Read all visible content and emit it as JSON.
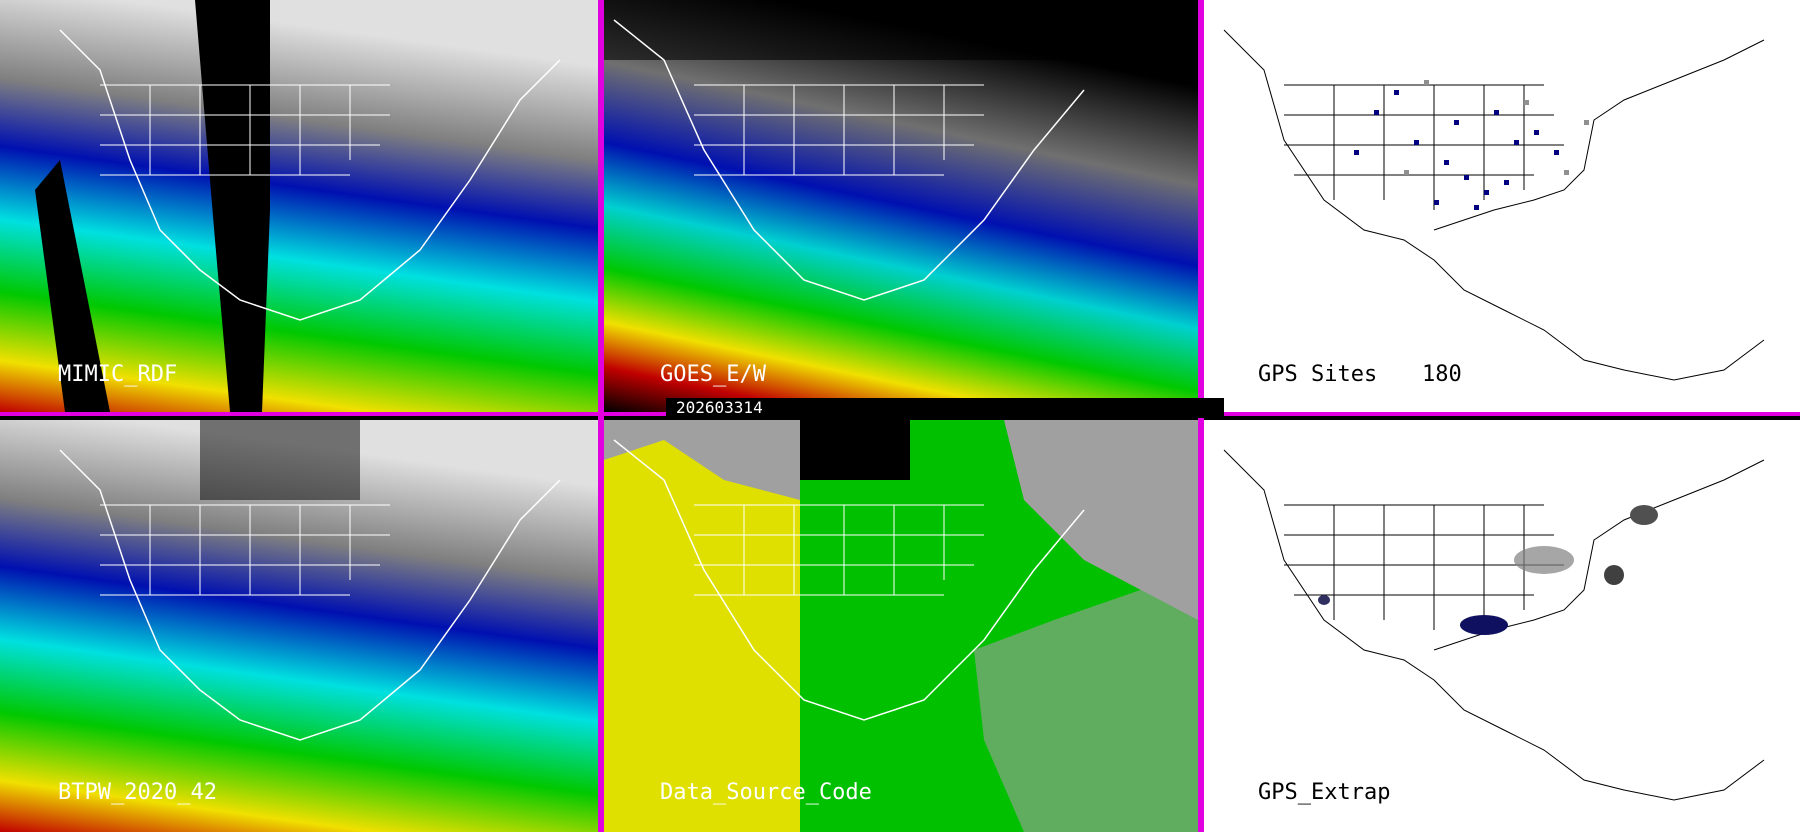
{
  "panels": {
    "mimic": {
      "label": "MIMIC_RDF"
    },
    "goes": {
      "label": "GOES_E/W"
    },
    "gps_sites": {
      "label": "GPS Sites",
      "count": "180"
    },
    "btpw": {
      "label": "BTPW_2020_42"
    },
    "source": {
      "label": "Data_Source_Code"
    },
    "gps_extrap": {
      "label": "GPS_Extrap"
    }
  },
  "date": "202603314",
  "colors": {
    "divider": "#e000e0",
    "tpw_scale": [
      "#c00000",
      "#f0e000",
      "#00c800",
      "#00e0e0",
      "#0000a0",
      "#808080",
      "#ffffff"
    ],
    "source_yellow": "#e0e000",
    "source_green": "#00c000",
    "source_gray": "#a0a0a0"
  }
}
